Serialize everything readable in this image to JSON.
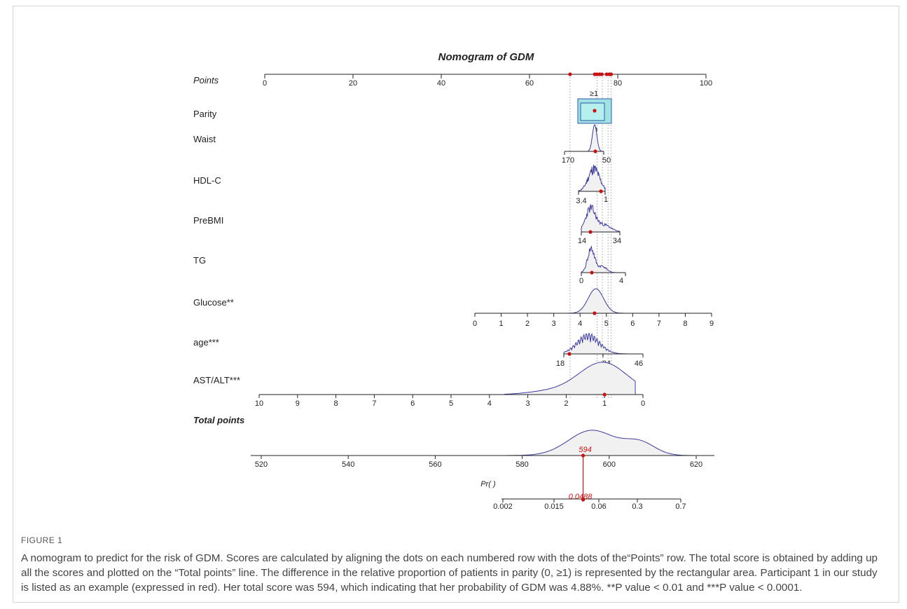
{
  "chart_data": {
    "type": "nomogram",
    "title": "Nomogram  of GDM",
    "points_axis": {
      "label": "Points",
      "ticks": [
        0,
        20,
        40,
        60,
        80,
        100
      ]
    },
    "variables": [
      {
        "key": "parity",
        "label": "Parity",
        "levels": [
          "0",
          "≥1"
        ]
      },
      {
        "key": "waist",
        "label": "Waist",
        "ticks": [
          170,
          50
        ]
      },
      {
        "key": "hdlc",
        "label": "HDL-C",
        "ticks": [
          3.4,
          1
        ]
      },
      {
        "key": "prebmi",
        "label": "PreBMI",
        "ticks": [
          14,
          34
        ]
      },
      {
        "key": "tg",
        "label": "TG",
        "ticks": [
          0,
          4
        ]
      },
      {
        "key": "glucose",
        "label": "Glucose**",
        "ticks": [
          0,
          1,
          2,
          3,
          4,
          5,
          6,
          7,
          8,
          9
        ]
      },
      {
        "key": "age",
        "label": "age***",
        "ticks": [
          18,
          34,
          46
        ]
      },
      {
        "key": "astalt",
        "label": "AST/ALT***",
        "ticks": [
          10,
          9,
          8,
          7,
          6,
          5,
          4,
          3,
          2,
          1,
          0
        ]
      }
    ],
    "total_points_axis": {
      "label": "Total points",
      "ticks": [
        520,
        540,
        560,
        580,
        600,
        620
      ]
    },
    "probability_axis": {
      "label": "Pr( )",
      "ticks": [
        "0.002",
        "0.015",
        "0.06",
        "0.3",
        "0.7"
      ]
    },
    "example_patient": {
      "total_points_label": "594",
      "probability_label": "0.0488",
      "total_points": 594,
      "probability": 0.0488
    },
    "colors": {
      "density": "#3a3aa0",
      "highlight": "#cc1111",
      "parity_box": "#9fe3e3"
    }
  },
  "caption": {
    "label": "FIGURE 1",
    "text": "A nomogram to predict for the risk of GDM. Scores are calculated by aligning the dots on each numbered row with the dots of the“Points” row. The total score is obtained by adding up all the scores and plotted on the “Total points” line. The difference in the relative proportion of patients in parity (0, ≥1) is represented by the rectangular area. Participant 1 in our study is listed as an example (expressed in red). Her total score was 594, which indicating that her probability of GDM was 4.88%. **P value < 0.01 and ***P value < 0.0001."
  }
}
